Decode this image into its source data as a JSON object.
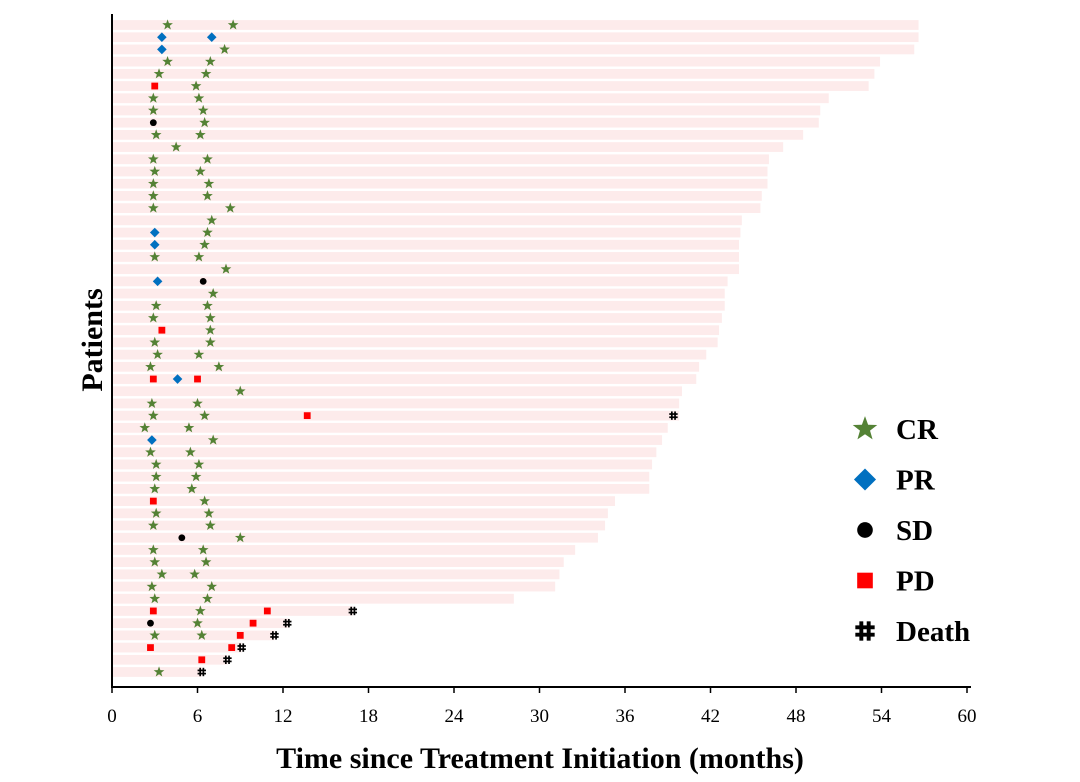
{
  "chart_data": {
    "type": "swimmer",
    "xlabel": "Time since Treatment Initiation (months)",
    "ylabel": "Patients",
    "xlim": [
      0,
      60
    ],
    "x_ticks": [
      0,
      6,
      12,
      18,
      24,
      30,
      36,
      42,
      48,
      54,
      60
    ],
    "grid": false,
    "legend": {
      "position": "right",
      "entries": [
        {
          "key": "CR",
          "label": "CR",
          "marker": "star",
          "color": "#548235"
        },
        {
          "key": "PR",
          "label": "PR",
          "marker": "diamond",
          "color": "#0070C0"
        },
        {
          "key": "SD",
          "label": "SD",
          "marker": "circle",
          "color": "#000000"
        },
        {
          "key": "PD",
          "label": "PD",
          "marker": "square",
          "color": "#FF0000"
        },
        {
          "key": "Death",
          "label": "Death",
          "marker": "hash",
          "color": "#000000"
        }
      ]
    },
    "bar_color": "#FDEBEB",
    "patients": [
      {
        "duration": 56.6,
        "events": [
          {
            "t": 3.9,
            "type": "CR"
          },
          {
            "t": 8.5,
            "type": "CR"
          }
        ]
      },
      {
        "duration": 56.6,
        "events": [
          {
            "t": 3.5,
            "type": "PR"
          },
          {
            "t": 7.0,
            "type": "PR"
          }
        ]
      },
      {
        "duration": 56.3,
        "events": [
          {
            "t": 3.5,
            "type": "PR"
          },
          {
            "t": 7.9,
            "type": "CR"
          }
        ]
      },
      {
        "duration": 53.9,
        "events": [
          {
            "t": 3.9,
            "type": "CR"
          },
          {
            "t": 6.9,
            "type": "CR"
          }
        ]
      },
      {
        "duration": 53.5,
        "events": [
          {
            "t": 3.3,
            "type": "CR"
          },
          {
            "t": 6.6,
            "type": "CR"
          }
        ]
      },
      {
        "duration": 53.1,
        "events": [
          {
            "t": 3.0,
            "type": "PD"
          },
          {
            "t": 5.9,
            "type": "CR"
          }
        ]
      },
      {
        "duration": 50.3,
        "events": [
          {
            "t": 2.9,
            "type": "CR"
          },
          {
            "t": 6.1,
            "type": "CR"
          }
        ]
      },
      {
        "duration": 49.7,
        "events": [
          {
            "t": 2.9,
            "type": "CR"
          },
          {
            "t": 6.4,
            "type": "CR"
          }
        ]
      },
      {
        "duration": 49.6,
        "events": [
          {
            "t": 2.9,
            "type": "SD"
          },
          {
            "t": 6.5,
            "type": "CR"
          }
        ]
      },
      {
        "duration": 48.5,
        "events": [
          {
            "t": 3.1,
            "type": "CR"
          },
          {
            "t": 6.2,
            "type": "CR"
          }
        ]
      },
      {
        "duration": 47.1,
        "events": [
          {
            "t": 4.5,
            "type": "CR"
          }
        ]
      },
      {
        "duration": 46.1,
        "events": [
          {
            "t": 2.9,
            "type": "CR"
          },
          {
            "t": 6.7,
            "type": "CR"
          }
        ]
      },
      {
        "duration": 46.0,
        "events": [
          {
            "t": 3.0,
            "type": "CR"
          },
          {
            "t": 6.2,
            "type": "CR"
          }
        ]
      },
      {
        "duration": 46.0,
        "events": [
          {
            "t": 2.9,
            "type": "CR"
          },
          {
            "t": 6.8,
            "type": "CR"
          }
        ]
      },
      {
        "duration": 45.6,
        "events": [
          {
            "t": 2.9,
            "type": "CR"
          },
          {
            "t": 6.7,
            "type": "CR"
          }
        ]
      },
      {
        "duration": 45.5,
        "events": [
          {
            "t": 2.9,
            "type": "CR"
          },
          {
            "t": 8.3,
            "type": "CR"
          }
        ]
      },
      {
        "duration": 44.2,
        "events": [
          {
            "t": 7.0,
            "type": "CR"
          }
        ]
      },
      {
        "duration": 44.1,
        "events": [
          {
            "t": 3.0,
            "type": "PR"
          },
          {
            "t": 6.7,
            "type": "CR"
          }
        ]
      },
      {
        "duration": 44.0,
        "events": [
          {
            "t": 3.0,
            "type": "PR"
          },
          {
            "t": 6.5,
            "type": "CR"
          }
        ]
      },
      {
        "duration": 44.0,
        "events": [
          {
            "t": 3.0,
            "type": "CR"
          },
          {
            "t": 6.1,
            "type": "CR"
          }
        ]
      },
      {
        "duration": 44.0,
        "events": [
          {
            "t": 8.0,
            "type": "CR"
          }
        ]
      },
      {
        "duration": 43.2,
        "events": [
          {
            "t": 3.2,
            "type": "PR"
          },
          {
            "t": 6.4,
            "type": "SD"
          }
        ]
      },
      {
        "duration": 43.0,
        "events": [
          {
            "t": 7.1,
            "type": "CR"
          }
        ]
      },
      {
        "duration": 43.0,
        "events": [
          {
            "t": 3.1,
            "type": "CR"
          },
          {
            "t": 6.7,
            "type": "CR"
          }
        ]
      },
      {
        "duration": 42.8,
        "events": [
          {
            "t": 2.9,
            "type": "CR"
          },
          {
            "t": 6.9,
            "type": "CR"
          }
        ]
      },
      {
        "duration": 42.6,
        "events": [
          {
            "t": 3.5,
            "type": "PD"
          },
          {
            "t": 6.9,
            "type": "CR"
          }
        ]
      },
      {
        "duration": 42.5,
        "events": [
          {
            "t": 3.0,
            "type": "CR"
          },
          {
            "t": 6.9,
            "type": "CR"
          }
        ]
      },
      {
        "duration": 41.7,
        "events": [
          {
            "t": 3.2,
            "type": "CR"
          },
          {
            "t": 6.1,
            "type": "CR"
          }
        ]
      },
      {
        "duration": 41.2,
        "events": [
          {
            "t": 2.7,
            "type": "CR"
          },
          {
            "t": 7.5,
            "type": "CR"
          }
        ]
      },
      {
        "duration": 41.0,
        "events": [
          {
            "t": 2.9,
            "type": "PD"
          },
          {
            "t": 4.6,
            "type": "PR"
          },
          {
            "t": 6.0,
            "type": "PD"
          }
        ]
      },
      {
        "duration": 40.0,
        "events": [
          {
            "t": 9.0,
            "type": "CR"
          }
        ]
      },
      {
        "duration": 39.8,
        "events": [
          {
            "t": 2.8,
            "type": "CR"
          },
          {
            "t": 6.0,
            "type": "CR"
          }
        ]
      },
      {
        "duration": 39.8,
        "events": [
          {
            "t": 2.9,
            "type": "CR"
          },
          {
            "t": 6.5,
            "type": "CR"
          },
          {
            "t": 13.7,
            "type": "PD"
          },
          {
            "t": 39.4,
            "type": "Death"
          }
        ]
      },
      {
        "duration": 39.0,
        "events": [
          {
            "t": 2.3,
            "type": "CR"
          },
          {
            "t": 5.4,
            "type": "CR"
          }
        ]
      },
      {
        "duration": 38.6,
        "events": [
          {
            "t": 2.8,
            "type": "PR"
          },
          {
            "t": 7.1,
            "type": "CR"
          }
        ]
      },
      {
        "duration": 38.2,
        "events": [
          {
            "t": 2.7,
            "type": "CR"
          },
          {
            "t": 5.5,
            "type": "CR"
          }
        ]
      },
      {
        "duration": 37.9,
        "events": [
          {
            "t": 3.1,
            "type": "CR"
          },
          {
            "t": 6.1,
            "type": "CR"
          }
        ]
      },
      {
        "duration": 37.7,
        "events": [
          {
            "t": 3.1,
            "type": "CR"
          },
          {
            "t": 5.9,
            "type": "CR"
          }
        ]
      },
      {
        "duration": 37.7,
        "events": [
          {
            "t": 3.0,
            "type": "CR"
          },
          {
            "t": 5.6,
            "type": "CR"
          }
        ]
      },
      {
        "duration": 35.3,
        "events": [
          {
            "t": 2.9,
            "type": "PD"
          },
          {
            "t": 6.5,
            "type": "CR"
          }
        ]
      },
      {
        "duration": 34.8,
        "events": [
          {
            "t": 3.1,
            "type": "CR"
          },
          {
            "t": 6.8,
            "type": "CR"
          }
        ]
      },
      {
        "duration": 34.6,
        "events": [
          {
            "t": 2.9,
            "type": "CR"
          },
          {
            "t": 6.9,
            "type": "CR"
          }
        ]
      },
      {
        "duration": 34.1,
        "events": [
          {
            "t": 4.9,
            "type": "SD"
          },
          {
            "t": 9.0,
            "type": "CR"
          }
        ]
      },
      {
        "duration": 32.5,
        "events": [
          {
            "t": 2.9,
            "type": "CR"
          },
          {
            "t": 6.4,
            "type": "CR"
          }
        ]
      },
      {
        "duration": 31.7,
        "events": [
          {
            "t": 3.0,
            "type": "CR"
          },
          {
            "t": 6.6,
            "type": "CR"
          }
        ]
      },
      {
        "duration": 31.4,
        "events": [
          {
            "t": 3.5,
            "type": "CR"
          },
          {
            "t": 5.8,
            "type": "CR"
          }
        ]
      },
      {
        "duration": 31.1,
        "events": [
          {
            "t": 2.8,
            "type": "CR"
          },
          {
            "t": 7.0,
            "type": "CR"
          }
        ]
      },
      {
        "duration": 28.2,
        "events": [
          {
            "t": 3.0,
            "type": "CR"
          },
          {
            "t": 6.7,
            "type": "CR"
          }
        ]
      },
      {
        "duration": 16.9,
        "events": [
          {
            "t": 2.9,
            "type": "PD"
          },
          {
            "t": 6.2,
            "type": "CR"
          },
          {
            "t": 10.9,
            "type": "PD"
          },
          {
            "t": 16.9,
            "type": "Death"
          }
        ]
      },
      {
        "duration": 12.4,
        "events": [
          {
            "t": 2.7,
            "type": "SD"
          },
          {
            "t": 6.0,
            "type": "CR"
          },
          {
            "t": 9.9,
            "type": "PD"
          },
          {
            "t": 12.3,
            "type": "Death"
          }
        ]
      },
      {
        "duration": 11.4,
        "events": [
          {
            "t": 3.0,
            "type": "CR"
          },
          {
            "t": 6.3,
            "type": "CR"
          },
          {
            "t": 9.0,
            "type": "PD"
          },
          {
            "t": 11.4,
            "type": "Death"
          }
        ]
      },
      {
        "duration": 9.1,
        "events": [
          {
            "t": 2.7,
            "type": "PD"
          },
          {
            "t": 8.4,
            "type": "PD"
          },
          {
            "t": 9.1,
            "type": "Death"
          }
        ]
      },
      {
        "duration": 8.1,
        "events": [
          {
            "t": 6.3,
            "type": "PD"
          },
          {
            "t": 8.1,
            "type": "Death"
          }
        ]
      },
      {
        "duration": 6.3,
        "events": [
          {
            "t": 3.3,
            "type": "CR"
          },
          {
            "t": 6.3,
            "type": "Death"
          }
        ]
      }
    ]
  }
}
